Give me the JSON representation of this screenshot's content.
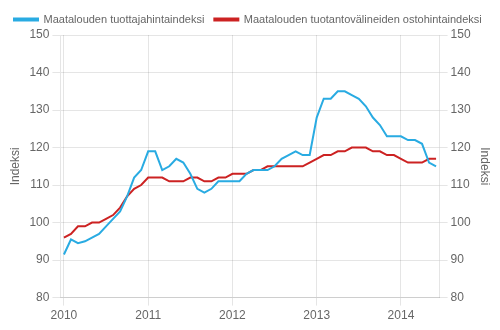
{
  "chart_data": {
    "type": "line",
    "ylabel": "Indeksi",
    "y2label": "Indeksi",
    "categories": [
      "2010",
      null,
      null,
      null,
      null,
      null,
      null,
      null,
      null,
      null,
      null,
      null,
      "2011",
      null,
      null,
      null,
      null,
      null,
      null,
      null,
      null,
      null,
      null,
      null,
      "2012",
      null,
      null,
      null,
      null,
      null,
      null,
      null,
      null,
      null,
      null,
      null,
      "2013",
      null,
      null,
      null,
      null,
      null,
      null,
      null,
      null,
      null,
      null,
      null,
      "2014",
      null,
      null,
      null,
      null,
      null
    ],
    "series": [
      {
        "name": "Maatalouden tuottajahintaindeksi",
        "color": "#29ABE2",
        "values": [
          91.5,
          95.5,
          94.5,
          95,
          96,
          97,
          99,
          101,
          103,
          107,
          112,
          114,
          119,
          119,
          114,
          115,
          117,
          116,
          113,
          109,
          108,
          109,
          111,
          111,
          111,
          111,
          113,
          114,
          114,
          114,
          115,
          117,
          118,
          119,
          118,
          118,
          128,
          133,
          133,
          135,
          135,
          134,
          133,
          131,
          128,
          126,
          123,
          123,
          123,
          122,
          122,
          121,
          116,
          115
        ]
      },
      {
        "name": "Maatalouden tuotantovälineiden ostohintaindeksi",
        "color": "#CC2222",
        "values": [
          96,
          97,
          99,
          99,
          100,
          100,
          101,
          102,
          104,
          107,
          109,
          110,
          112,
          112,
          112,
          111,
          111,
          111,
          112,
          112,
          111,
          111,
          112,
          112,
          113,
          113,
          113,
          114,
          114,
          115,
          115,
          115,
          115,
          115,
          115,
          116,
          117,
          118,
          118,
          119,
          119,
          120,
          120,
          120,
          119,
          119,
          118,
          118,
          117,
          116,
          116,
          116,
          117,
          117
        ]
      }
    ],
    "ylim": [
      80,
      150
    ],
    "yticks": [
      80,
      90,
      100,
      110,
      120,
      130,
      140,
      150
    ],
    "y2lim": [
      80,
      150
    ],
    "y2ticks": [
      80,
      90,
      100,
      110,
      120,
      130,
      140,
      150
    ],
    "grid": true,
    "legend": "upper left"
  }
}
